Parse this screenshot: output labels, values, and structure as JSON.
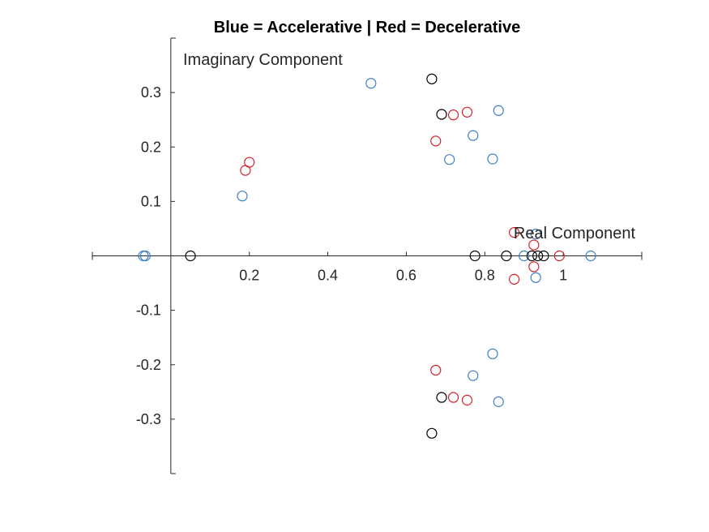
{
  "chart_data": {
    "type": "scatter",
    "title": "Blue = Accelerative | Red = Decelerative",
    "xlabel": "Real Component",
    "ylabel": "Imaginary Component",
    "xlim": [
      -0.2,
      1.2
    ],
    "ylim": [
      -0.4,
      0.4
    ],
    "x_ticks": [
      0.2,
      0.4,
      0.6,
      0.8,
      1
    ],
    "x_tick_labels": [
      "0.2",
      "0.4",
      "0.6",
      "0.8",
      "1"
    ],
    "y_ticks": [
      -0.3,
      -0.2,
      -0.1,
      0.1,
      0.2,
      0.3
    ],
    "y_tick_labels": [
      "-0.3",
      "-0.2",
      "-0.1",
      "0.1",
      "0.2",
      "0.3"
    ],
    "grid": false,
    "axes_through_origin": true,
    "marker": "open-circle",
    "series": [
      {
        "color": "#3d7fc4",
        "points": [
          [
            -0.07,
            0.0
          ],
          [
            -0.065,
            0.0
          ],
          [
            0.182,
            0.11
          ],
          [
            0.51,
            0.317
          ],
          [
            0.71,
            0.177
          ],
          [
            0.77,
            0.221
          ],
          [
            0.82,
            0.178
          ],
          [
            0.835,
            0.267
          ],
          [
            0.9,
            0.0
          ],
          [
            0.93,
            0.04
          ],
          [
            0.93,
            -0.04
          ],
          [
            1.07,
            0.0
          ],
          [
            0.82,
            -0.18
          ],
          [
            0.77,
            -0.22
          ],
          [
            0.835,
            -0.268
          ]
        ]
      },
      {
        "color": "#d2232a",
        "points": [
          [
            0.19,
            0.157
          ],
          [
            0.2,
            0.172
          ],
          [
            0.675,
            0.211
          ],
          [
            0.72,
            0.259
          ],
          [
            0.755,
            0.264
          ],
          [
            0.875,
            0.043
          ],
          [
            0.925,
            0.02
          ],
          [
            0.925,
            -0.02
          ],
          [
            0.875,
            -0.043
          ],
          [
            0.99,
            0.0
          ],
          [
            0.675,
            -0.21
          ],
          [
            0.72,
            -0.26
          ],
          [
            0.755,
            -0.265
          ]
        ]
      },
      {
        "color": "#000000",
        "points": [
          [
            0.05,
            0.0
          ],
          [
            0.665,
            0.325
          ],
          [
            0.69,
            0.26
          ],
          [
            0.775,
            0.0
          ],
          [
            0.855,
            0.0
          ],
          [
            0.92,
            0.0
          ],
          [
            0.935,
            0.0
          ],
          [
            0.95,
            0.0
          ],
          [
            0.69,
            -0.26
          ],
          [
            0.665,
            -0.326
          ]
        ]
      }
    ]
  }
}
